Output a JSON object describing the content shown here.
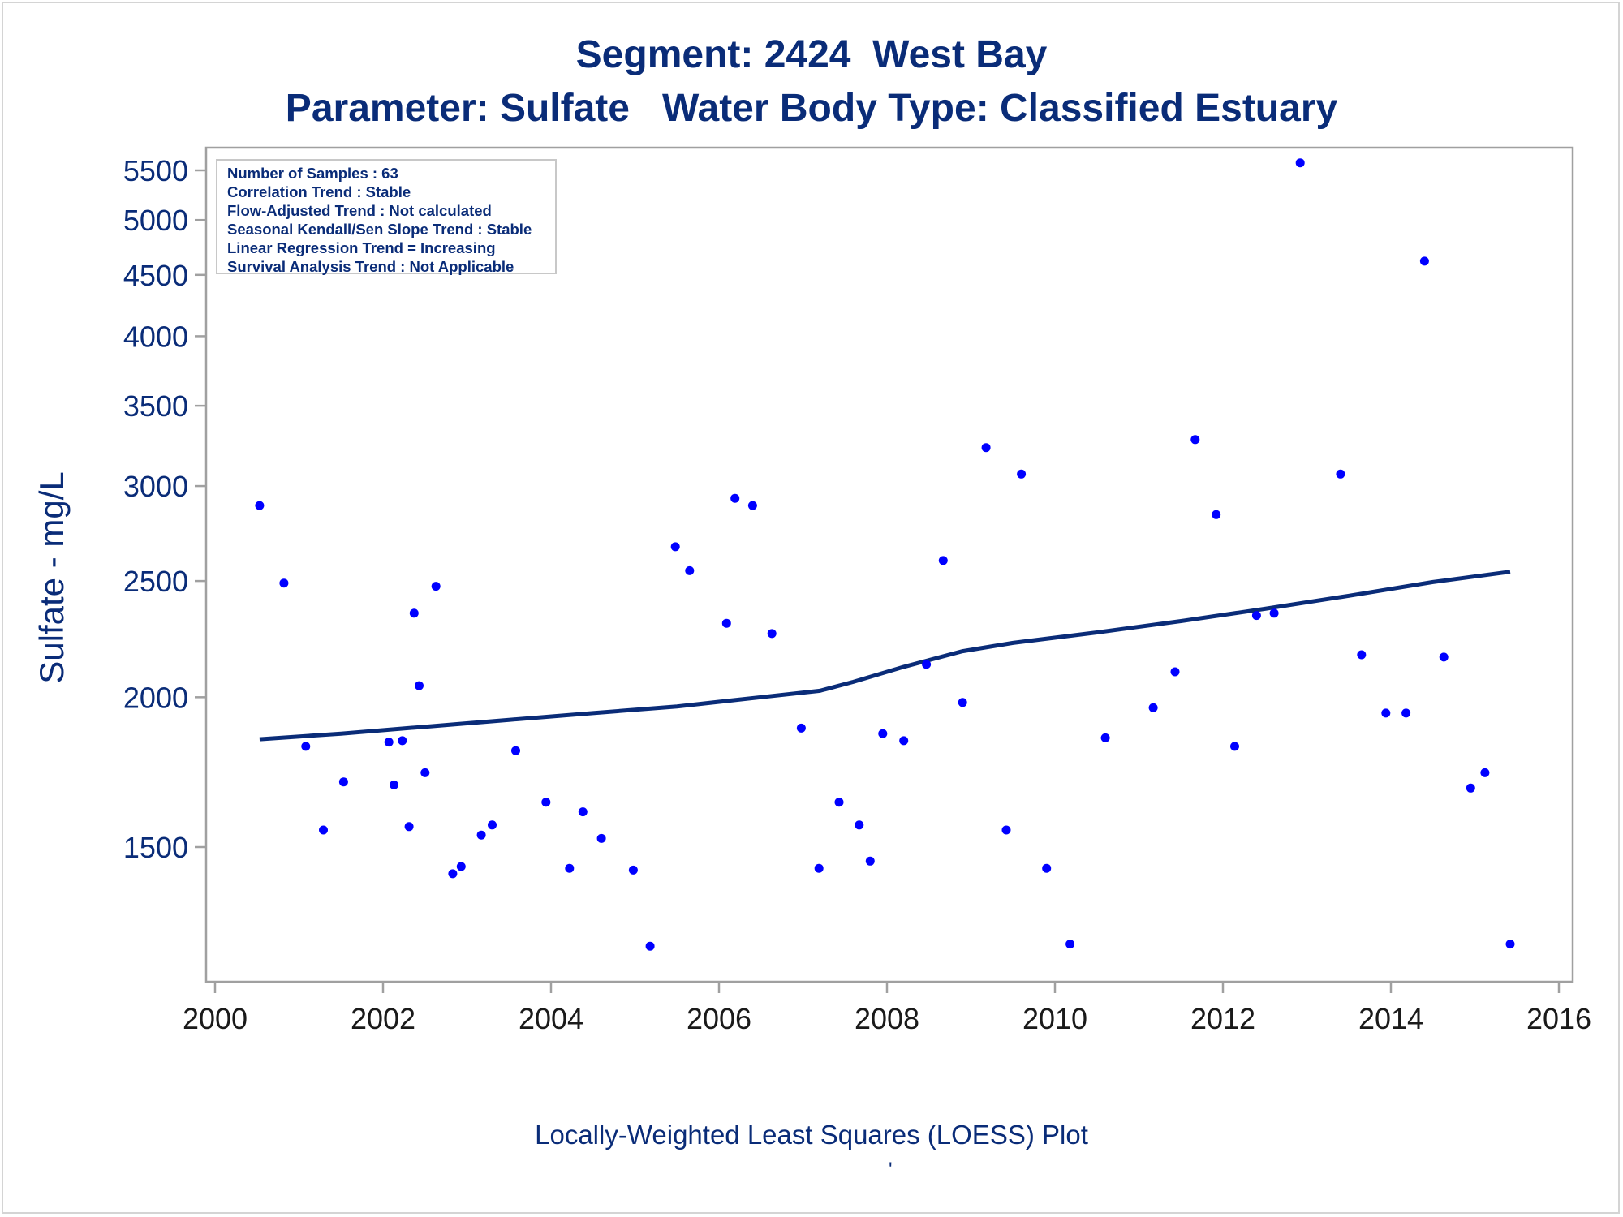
{
  "chart_data": {
    "type": "scatter",
    "title": "Segment: 2424  West Bay",
    "subtitle": "Parameter: Sulfate   Water Body Type: Classified Estuary",
    "xlabel": "",
    "ylabel": "Sulfate - mg/L",
    "footnote": "Locally-Weighted Least Squares (LOESS) Plot",
    "footnote_mark": "'",
    "y_scale": "log",
    "xlim": [
      2000,
      2016
    ],
    "ylim": [
      1220,
      5650
    ],
    "x_ticks": [
      "2000",
      "2002",
      "2004",
      "2006",
      "2008",
      "2010",
      "2012",
      "2014",
      "2016"
    ],
    "y_ticks": [
      "1500",
      "2000",
      "2500",
      "3000",
      "3500",
      "4000",
      "4500",
      "5000",
      "5500"
    ],
    "legend_lines": [
      "Number of Samples : 63",
      "Correlation Trend : Stable",
      "Flow-Adjusted Trend : Not calculated",
      "Seasonal Kendall/Sen Slope Trend : Stable",
      "Linear Regression Trend = Increasing",
      "Survival Analysis Trend : Not Applicable"
    ],
    "legend_placement": "top-left",
    "grid": false,
    "point_color": "#0000ff",
    "line_color": "#0a2c78",
    "points": [
      {
        "x": 2000.53,
        "y": 2890
      },
      {
        "x": 2000.82,
        "y": 2490
      },
      {
        "x": 2001.08,
        "y": 1820
      },
      {
        "x": 2001.29,
        "y": 1550
      },
      {
        "x": 2001.53,
        "y": 1700
      },
      {
        "x": 2002.07,
        "y": 1835
      },
      {
        "x": 2002.13,
        "y": 1690
      },
      {
        "x": 2002.23,
        "y": 1840
      },
      {
        "x": 2002.31,
        "y": 1560
      },
      {
        "x": 2002.37,
        "y": 2350
      },
      {
        "x": 2002.43,
        "y": 2045
      },
      {
        "x": 2002.5,
        "y": 1730
      },
      {
        "x": 2002.63,
        "y": 2475
      },
      {
        "x": 2002.83,
        "y": 1425
      },
      {
        "x": 2002.93,
        "y": 1445
      },
      {
        "x": 2003.17,
        "y": 1535
      },
      {
        "x": 2003.3,
        "y": 1565
      },
      {
        "x": 2003.58,
        "y": 1805
      },
      {
        "x": 2003.94,
        "y": 1635
      },
      {
        "x": 2004.22,
        "y": 1440
      },
      {
        "x": 2004.38,
        "y": 1605
      },
      {
        "x": 2004.6,
        "y": 1525
      },
      {
        "x": 2004.98,
        "y": 1435
      },
      {
        "x": 2005.18,
        "y": 1240
      },
      {
        "x": 2005.48,
        "y": 2670
      },
      {
        "x": 2005.65,
        "y": 2550
      },
      {
        "x": 2006.09,
        "y": 2305
      },
      {
        "x": 2006.19,
        "y": 2930
      },
      {
        "x": 2006.4,
        "y": 2890
      },
      {
        "x": 2006.63,
        "y": 2260
      },
      {
        "x": 2006.98,
        "y": 1885
      },
      {
        "x": 2007.19,
        "y": 1440
      },
      {
        "x": 2007.43,
        "y": 1635
      },
      {
        "x": 2007.67,
        "y": 1565
      },
      {
        "x": 2007.8,
        "y": 1460
      },
      {
        "x": 2007.95,
        "y": 1865
      },
      {
        "x": 2008.2,
        "y": 1840
      },
      {
        "x": 2008.47,
        "y": 2130
      },
      {
        "x": 2008.67,
        "y": 2600
      },
      {
        "x": 2008.9,
        "y": 1980
      },
      {
        "x": 2009.18,
        "y": 3230
      },
      {
        "x": 2009.42,
        "y": 1550
      },
      {
        "x": 2009.6,
        "y": 3070
      },
      {
        "x": 2009.9,
        "y": 1440
      },
      {
        "x": 2010.18,
        "y": 1245
      },
      {
        "x": 2010.6,
        "y": 1850
      },
      {
        "x": 2011.17,
        "y": 1960
      },
      {
        "x": 2011.43,
        "y": 2100
      },
      {
        "x": 2011.67,
        "y": 3280
      },
      {
        "x": 2011.92,
        "y": 2840
      },
      {
        "x": 2012.14,
        "y": 1820
      },
      {
        "x": 2012.4,
        "y": 2340
      },
      {
        "x": 2012.61,
        "y": 2350
      },
      {
        "x": 2012.92,
        "y": 5580
      },
      {
        "x": 2013.4,
        "y": 3070
      },
      {
        "x": 2013.65,
        "y": 2170
      },
      {
        "x": 2013.94,
        "y": 1940
      },
      {
        "x": 2014.18,
        "y": 1940
      },
      {
        "x": 2014.4,
        "y": 4620
      },
      {
        "x": 2014.63,
        "y": 2160
      },
      {
        "x": 2014.95,
        "y": 1680
      },
      {
        "x": 2015.12,
        "y": 1730
      },
      {
        "x": 2015.42,
        "y": 1245
      }
    ],
    "loess_line": [
      {
        "x": 2000.53,
        "y": 1845
      },
      {
        "x": 2001.5,
        "y": 1865
      },
      {
        "x": 2002.5,
        "y": 1890
      },
      {
        "x": 2003.5,
        "y": 1915
      },
      {
        "x": 2004.5,
        "y": 1940
      },
      {
        "x": 2005.5,
        "y": 1965
      },
      {
        "x": 2006.5,
        "y": 2000
      },
      {
        "x": 2007.2,
        "y": 2025
      },
      {
        "x": 2007.6,
        "y": 2060
      },
      {
        "x": 2008.2,
        "y": 2120
      },
      {
        "x": 2008.9,
        "y": 2185
      },
      {
        "x": 2009.5,
        "y": 2220
      },
      {
        "x": 2010.5,
        "y": 2265
      },
      {
        "x": 2011.5,
        "y": 2315
      },
      {
        "x": 2012.5,
        "y": 2370
      },
      {
        "x": 2013.5,
        "y": 2430
      },
      {
        "x": 2014.5,
        "y": 2495
      },
      {
        "x": 2015.42,
        "y": 2545
      }
    ]
  }
}
